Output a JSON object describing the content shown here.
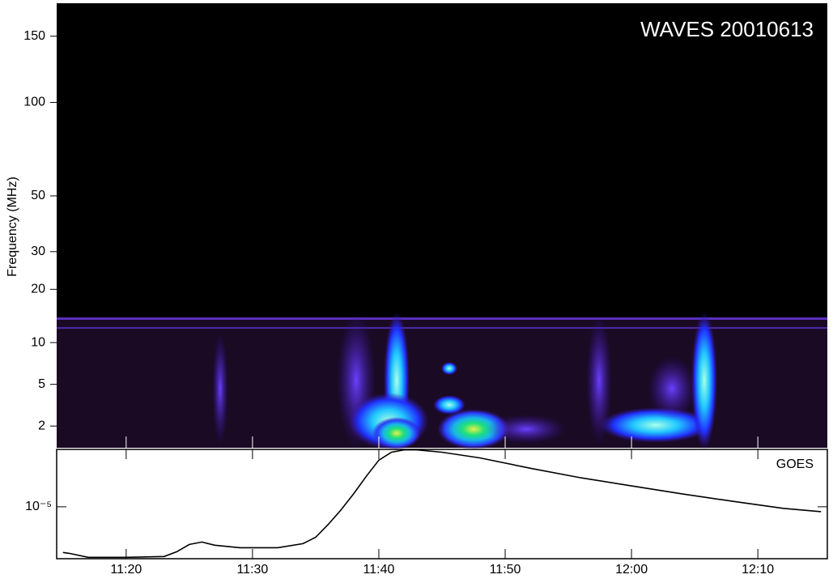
{
  "chart_data": [
    {
      "type": "spectrogram",
      "title": "WAVES 20010613",
      "y_label": "Frequency (MHz)",
      "ylim": [
        1.07,
        180
      ],
      "yticks": [
        2,
        5,
        10,
        20,
        30,
        50,
        100,
        150
      ],
      "xlim": [
        "11:14:30",
        "12:15:30"
      ],
      "xticks": [
        "11:20",
        "11:30",
        "11:40",
        "11:50",
        "12:00",
        "12:10"
      ]
    },
    {
      "type": "line",
      "title": "GOES",
      "x": [
        "11:15",
        "11:15:30",
        "11:17",
        "11:20",
        "11:23",
        "11:24",
        "11:25",
        "11:26",
        "11:27",
        "11:29",
        "11:32",
        "11:34",
        "11:35",
        "11:36",
        "11:37",
        "11:38",
        "11:39",
        "11:40",
        "11:41",
        "11:42",
        "11:43",
        "11:45",
        "11:48",
        "11:52",
        "11:56",
        "12:00",
        "12:04",
        "12:08",
        "12:12",
        "12:15"
      ],
      "series": [
        {
          "name": "GOES",
          "color": "#000000",
          "values": [
            4.17e-06,
            4.1e-06,
            3.8e-06,
            3.8e-06,
            3.86e-06,
            4.23e-06,
            4.86e-06,
            5.09e-06,
            4.79e-06,
            4.57e-06,
            4.57e-06,
            4.94e-06,
            5.58e-06,
            7.14e-06,
            9.4e-06,
            1.28e-05,
            1.79e-05,
            2.44e-05,
            2.84e-05,
            2.97e-05,
            2.97e-05,
            2.84e-05,
            2.55e-05,
            2.09e-05,
            1.74e-05,
            1.49e-05,
            1.28e-05,
            1.11e-05,
            9.7e-06,
            9.1e-06
          ]
        }
      ],
      "log_scale": true,
      "ylim": [
        3.7e-06,
        3e-05
      ],
      "yticks": [
        {
          "value": 1e-05,
          "label": "10⁻⁵"
        }
      ],
      "xlim": [
        "11:14:30",
        "12:15:30"
      ],
      "xticks": [
        "11:20",
        "11:30",
        "11:40",
        "11:50",
        "12:00",
        "12:10"
      ]
    }
  ]
}
